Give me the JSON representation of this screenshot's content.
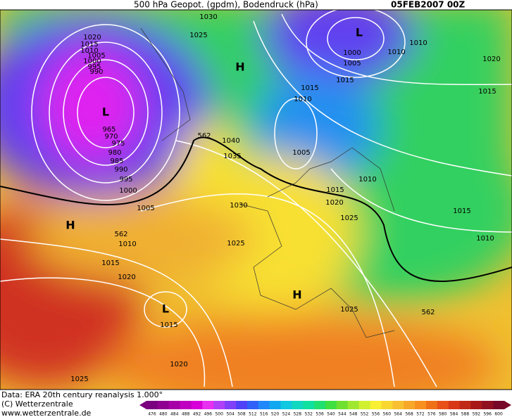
{
  "header": {
    "title": "500 hPa Geopot. (gpdm), Bodendruck (hPa)",
    "date": "05FEB2007 00Z"
  },
  "map": {
    "labels": [
      "1030",
      "1025",
      "1020",
      "1015",
      "1010",
      "1005",
      "1000",
      "995",
      "990",
      "L",
      "965",
      "970",
      "975",
      "980",
      "985",
      "990",
      "995",
      "1000",
      "1005",
      "H",
      "562",
      "1010",
      "1015",
      "1020",
      "L",
      "1015",
      "1020",
      "1025",
      "562",
      "1040",
      "1035",
      "1030",
      "1025",
      "H",
      "L",
      "1000",
      "1005",
      "1010",
      "1010",
      "1015",
      "1015",
      "1010",
      "1005",
      "1010",
      "1015",
      "1020",
      "1025",
      "H",
      "1025",
      "562",
      "1020",
      "1015",
      "1015",
      "1010"
    ]
  },
  "footer": {
    "source": "Data: ERA 20th century reanalysis 1.000°",
    "copyright": "(C) Wetterzentrale",
    "url": "www.wetterzentrale.de"
  },
  "color_scale": {
    "labels": [
      476,
      480,
      484,
      488,
      492,
      496,
      500,
      504,
      508,
      512,
      516,
      520,
      524,
      528,
      532,
      536,
      540,
      544,
      548,
      552,
      556,
      560,
      564,
      568,
      572,
      576,
      580,
      584,
      588,
      592,
      596,
      600
    ]
  }
}
